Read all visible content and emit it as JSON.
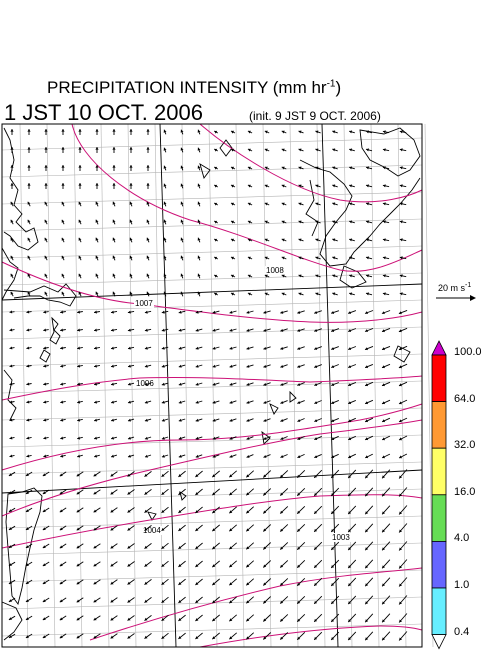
{
  "header": {
    "title_text": "PRECIPITATION INTENSITY (mm hr",
    "title_sup": "-1",
    "title_close": ")",
    "valid_time": "1 JST 10 OCT. 2006",
    "init_time": "(init. 9 JST 9 OCT. 2006)"
  },
  "wind_reference": {
    "text": "20 m s",
    "sup": "-1"
  },
  "colorbar": {
    "labels": [
      "100.0",
      "64.0",
      "32.0",
      "16.0",
      "4.0",
      "1.0",
      "0.4"
    ],
    "colors": [
      "#cc00cc",
      "#ff0000",
      "#ff9933",
      "#ffff66",
      "#66dd55",
      "#6666ff",
      "#66eeff",
      "#ffffff"
    ]
  },
  "isobars": [
    {
      "label": "1008"
    },
    {
      "label": "1007"
    },
    {
      "label": "1006"
    },
    {
      "label": "1004"
    },
    {
      "label": "1003"
    }
  ],
  "colors": {
    "isobar": "#cc1177",
    "grid": "#b4b4b4",
    "frame": "#000000"
  }
}
